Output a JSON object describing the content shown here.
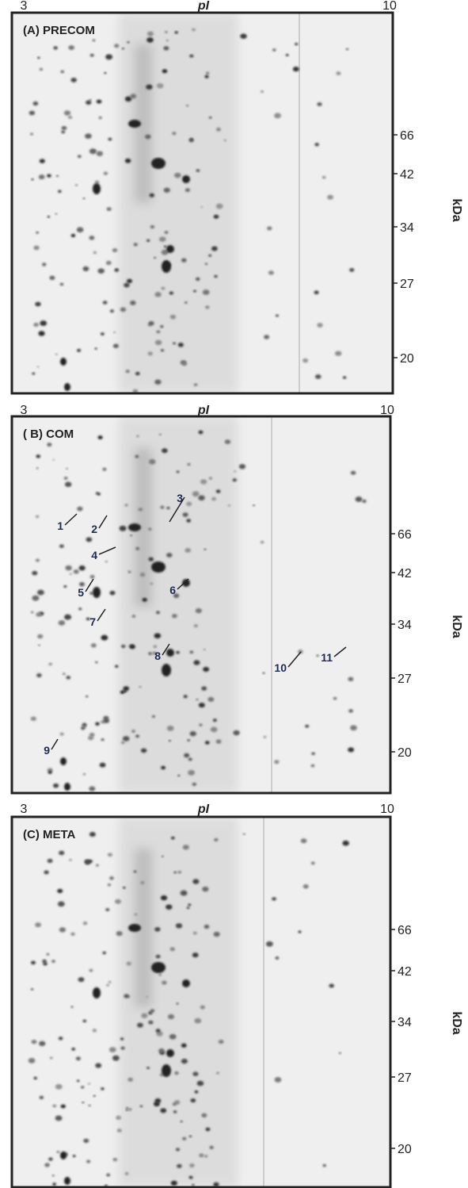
{
  "panels": [
    {
      "label": "(A) PRECOM",
      "x_axis": {
        "min": "3",
        "label": "pI",
        "max": "10"
      },
      "y_axis": {
        "ticks": [
          "66",
          "42",
          "34",
          "27",
          "20"
        ],
        "label": "kDa"
      }
    },
    {
      "label": "( B) COM",
      "x_axis": {
        "min": "3",
        "label": "pI",
        "max": "10"
      },
      "y_axis": {
        "ticks": [
          "66",
          "42",
          "34",
          "27",
          "20"
        ],
        "label": "kDa"
      },
      "spots": [
        "1",
        "2",
        "3",
        "4",
        "5",
        "6",
        "7",
        "8",
        "9",
        "10",
        "11"
      ]
    },
    {
      "label": "(C) META",
      "x_axis": {
        "min": "3",
        "label": "pI",
        "max": "10"
      },
      "y_axis": {
        "ticks": [
          "66",
          "42",
          "34",
          "27",
          "20"
        ],
        "label": "kDa"
      }
    }
  ]
}
